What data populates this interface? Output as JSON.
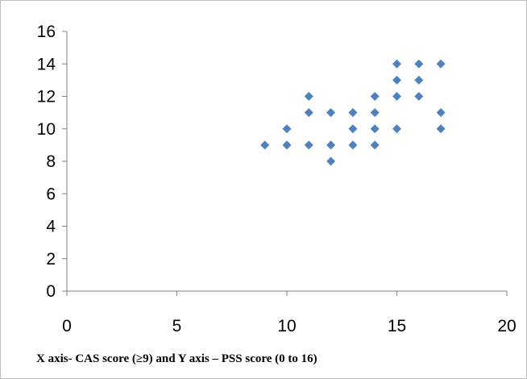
{
  "chart_data": {
    "type": "scatter",
    "title": "",
    "xlabel": "",
    "ylabel": "",
    "xlim": [
      0,
      20
    ],
    "ylim": [
      0,
      16
    ],
    "x_ticks": [
      0,
      5,
      10,
      15,
      20
    ],
    "y_ticks": [
      0,
      2,
      4,
      6,
      8,
      10,
      12,
      14,
      16
    ],
    "grid": false,
    "legend": "none",
    "marker": "diamond",
    "series": [
      {
        "color": "#4f81bd",
        "points": [
          [
            9,
            9
          ],
          [
            10,
            9
          ],
          [
            10,
            10
          ],
          [
            11,
            9
          ],
          [
            11,
            11
          ],
          [
            11,
            12
          ],
          [
            12,
            8
          ],
          [
            12,
            9
          ],
          [
            12,
            11
          ],
          [
            13,
            9
          ],
          [
            13,
            10
          ],
          [
            13,
            11
          ],
          [
            14,
            9
          ],
          [
            14,
            10
          ],
          [
            14,
            11
          ],
          [
            14,
            12
          ],
          [
            15,
            10
          ],
          [
            15,
            12
          ],
          [
            15,
            13
          ],
          [
            15,
            14
          ],
          [
            16,
            12
          ],
          [
            16,
            13
          ],
          [
            16,
            14
          ],
          [
            17,
            10
          ],
          [
            17,
            11
          ],
          [
            17,
            14
          ]
        ]
      }
    ]
  },
  "caption": "X axis- CAS score (≥9) and Y axis – PSS score (0 to 16)",
  "colors": {
    "marker": "#4f81bd",
    "axis": "#808080",
    "frame": "#bfbfbf"
  }
}
